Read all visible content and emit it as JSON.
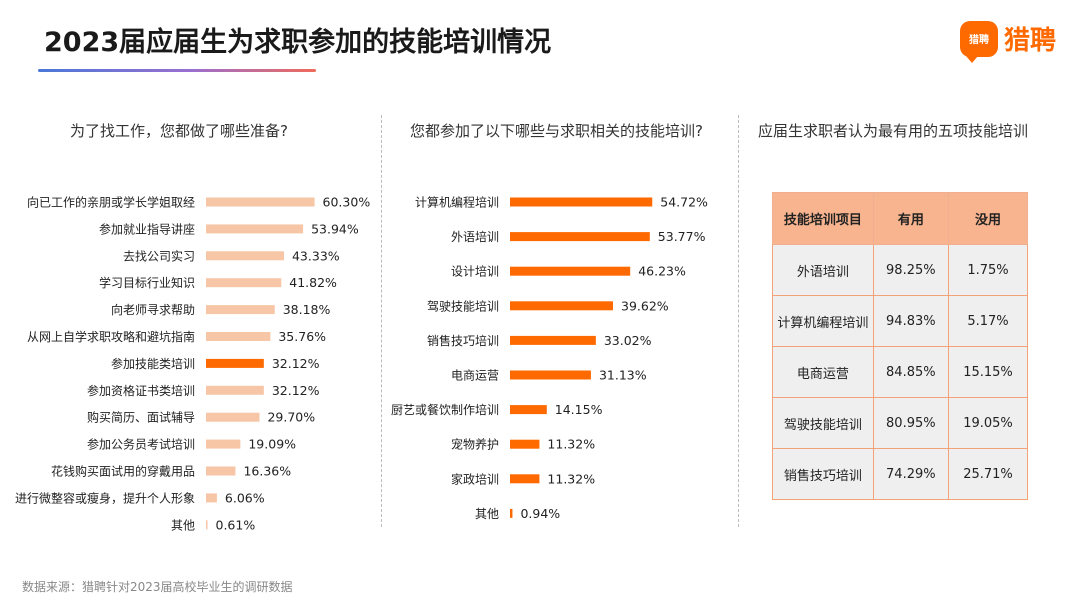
{
  "header": {
    "title": "2023届应届生为求职参加的技能培训情况",
    "logo_badge": "猎聘",
    "logo_text": "猎聘"
  },
  "colors": {
    "light_bar": "#f6c6a6",
    "highlight_bar": "#ff6a00",
    "header_fill": "#f7b48e",
    "cell_fill": "#efefef"
  },
  "chart_data": [
    {
      "type": "bar",
      "orientation": "horizontal",
      "title": "为了找工作，您都做了哪些准备?",
      "categories": [
        "向已工作的亲朋或学长学姐取经",
        "参加就业指导讲座",
        "去找公司实习",
        "学习目标行业知识",
        "向老师寻求帮助",
        "从网上自学求职攻略和避坑指南",
        "参加技能类培训",
        "参加资格证书类培训",
        "购买简历、面试辅导",
        "参加公务员考试培训",
        "花钱购买面试用的穿戴用品",
        "进行微整容或瘦身，提升个人形象",
        "其他"
      ],
      "values": [
        60.3,
        53.94,
        43.33,
        41.82,
        38.18,
        35.76,
        32.12,
        32.12,
        29.7,
        19.09,
        16.36,
        6.06,
        0.61
      ],
      "labels": [
        "60.30%",
        "53.94%",
        "43.33%",
        "41.82%",
        "38.18%",
        "35.76%",
        "32.12%",
        "32.12%",
        "29.70%",
        "19.09%",
        "16.36%",
        "6.06%",
        "0.61%"
      ],
      "highlight": "参加技能类培训",
      "unit": "%"
    },
    {
      "type": "bar",
      "orientation": "horizontal",
      "title": "您都参加了以下哪些与求职相关的技能培训?",
      "categories": [
        "计算机编程培训",
        "外语培训",
        "设计培训",
        "驾驶技能培训",
        "销售技巧培训",
        "电商运营",
        "厨艺或餐饮制作培训",
        "宠物养护",
        "家政培训",
        "其他"
      ],
      "values": [
        54.72,
        53.77,
        46.23,
        39.62,
        33.02,
        31.13,
        14.15,
        11.32,
        11.32,
        0.94
      ],
      "labels": [
        "54.72%",
        "53.77%",
        "46.23%",
        "39.62%",
        "33.02%",
        "31.13%",
        "14.15%",
        "11.32%",
        "11.32%",
        "0.94%"
      ],
      "unit": "%"
    },
    {
      "type": "table",
      "title": "应届生求职者认为最有用的五项技能培训",
      "columns": [
        "技能培训项目",
        "有用",
        "没用"
      ],
      "rows": [
        [
          "外语培训",
          "98.25%",
          "1.75%"
        ],
        [
          "计算机编程培训",
          "94.83%",
          "5.17%"
        ],
        [
          "电商运营",
          "84.85%",
          "15.15%"
        ],
        [
          "驾驶技能培训",
          "80.95%",
          "19.05%"
        ],
        [
          "销售技巧培训",
          "74.29%",
          "25.71%"
        ]
      ]
    }
  ],
  "footer": {
    "source": "数据来源：猎聘针对2023届高校毕业生的调研数据"
  }
}
